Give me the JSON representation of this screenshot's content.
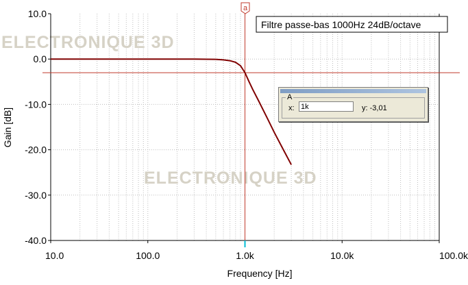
{
  "chart_data": {
    "type": "line",
    "title": "Filtre passe-bas 1000Hz 24dB/octave",
    "xlabel": "Frequency [Hz]",
    "ylabel": "Gain [dB]",
    "xscale": "log",
    "xlim": [
      10,
      100000
    ],
    "ylim": [
      -40,
      10
    ],
    "yticks": [
      10,
      0,
      -10,
      -20,
      -30,
      -40
    ],
    "ytick_labels": [
      "10.0",
      "0.0",
      "-10.0",
      "-20.0",
      "-30.0",
      "-40.0"
    ],
    "xticks": [
      10,
      100,
      1000,
      10000,
      100000
    ],
    "xtick_labels": [
      "10.0",
      "100.0",
      "1.0k",
      "10.0k",
      "100.0k"
    ],
    "grid": true,
    "series": [
      {
        "color": "#800000",
        "x": [
          10,
          100,
          300,
          500,
          600,
          700,
          800,
          900,
          1000,
          1100,
          1200,
          1400,
          1700,
          2000,
          2500,
          3000
        ],
        "y": [
          0,
          0,
          -0.01,
          -0.07,
          -0.17,
          -0.36,
          -0.72,
          -1.47,
          -3.01,
          -4.96,
          -6.66,
          -9.45,
          -13.06,
          -16.15,
          -20.1,
          -23.3
        ]
      }
    ],
    "reference_line_y": -3.01,
    "cursor": {
      "label": "a",
      "x": 1000
    }
  },
  "watermark": "ELECTRONIQUE 3D",
  "cursor_panel": {
    "group_label": "A",
    "x_label": "x:",
    "x_value": "1k",
    "y_readout": "y: -3,01"
  }
}
